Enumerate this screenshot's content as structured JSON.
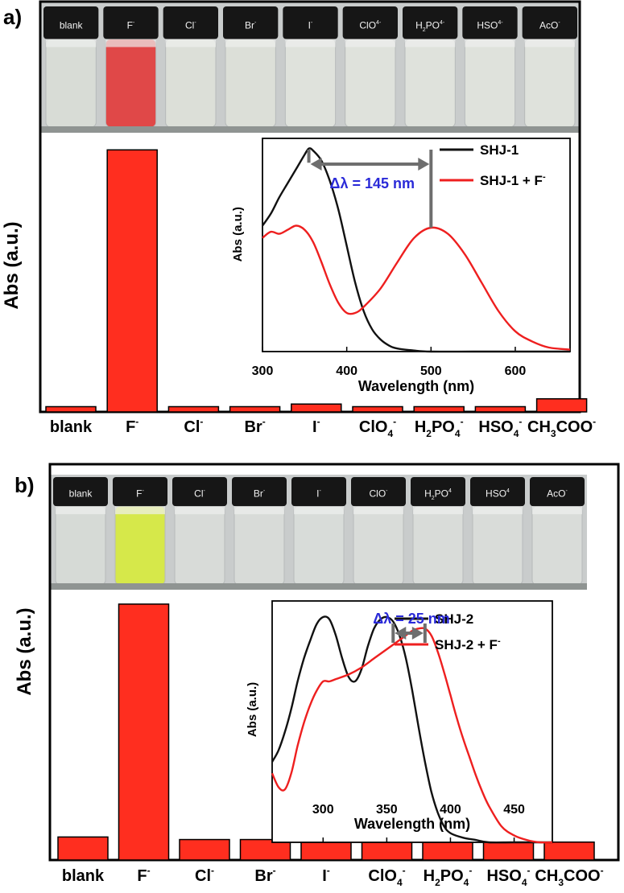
{
  "panels": [
    {
      "panel_label": "a)",
      "vial_labels": [
        {
          "base": "blank",
          "sup": ""
        },
        {
          "base": "F",
          "sup": "-"
        },
        {
          "base": "Cl",
          "sup": "-"
        },
        {
          "base": "Br",
          "sup": "-"
        },
        {
          "base": "I",
          "sup": "-"
        },
        {
          "base": "ClO",
          "sup": "4",
          "sup2": "-"
        },
        {
          "base": "H",
          "sub": "2",
          "mid": "PO",
          "sup": "4",
          "sup2": "-"
        },
        {
          "base": "HSO",
          "sup": "4",
          "sup2": "-"
        },
        {
          "base": "AcO",
          "sup": "-"
        }
      ],
      "vial_colors": [
        "#d8dcd6",
        "#e04848",
        "#dcdfd8",
        "#dcdfd8",
        "#dfe2dc",
        "#dfe2dc",
        "#dfe2dc",
        "#dfe2dc",
        "#dfe2dc"
      ],
      "chart_data": {
        "type": "bar",
        "ylabel": "Abs (a.u.)",
        "categories": [
          "blank",
          "F",
          "Cl",
          "Br",
          "I",
          "ClO4",
          "H2PO4",
          "HSO4",
          "CH3COO"
        ],
        "category_labels": [
          {
            "base": "blank"
          },
          {
            "base": "F",
            "sup": "-"
          },
          {
            "base": "Cl",
            "sup": "-"
          },
          {
            "base": "Br",
            "sup": "-"
          },
          {
            "base": "I",
            "sup": "-"
          },
          {
            "base": "ClO",
            "sub": "4",
            "sup": "-"
          },
          {
            "base": "H",
            "sub": "2",
            "mid": "PO",
            "sub2": "4",
            "sup": "-"
          },
          {
            "base": "HSO",
            "sub": "4",
            "sup": "-"
          },
          {
            "base": "CH",
            "sub": "3",
            "mid": "COO",
            "sup": "-"
          }
        ],
        "values": [
          0.02,
          1.0,
          0.02,
          0.02,
          0.03,
          0.02,
          0.02,
          0.02,
          0.05
        ],
        "ylim": [
          0,
          1.05
        ],
        "bar_color": "#ff2e1f",
        "inset": {
          "type": "line",
          "xlabel": "Wavelength (nm)",
          "ylabel": "Abs (a.u.)",
          "xlim": [
            300,
            665
          ],
          "ylim": [
            0,
            1.05
          ],
          "xticks": [
            300,
            400,
            500,
            600
          ],
          "annotation": "Δλ = 145 nm",
          "annotation_color": "#2a2ad8",
          "markers_nm": [
            355,
            500
          ],
          "series": [
            {
              "name": "SHJ-1",
              "color": "#111111",
              "x": [
                300,
                310,
                320,
                330,
                340,
                350,
                355,
                360,
                370,
                380,
                390,
                400,
                410,
                420,
                430,
                440,
                450,
                460,
                480,
                500,
                550,
                600,
                665
              ],
              "y": [
                0.62,
                0.68,
                0.76,
                0.83,
                0.9,
                0.97,
                1.0,
                0.99,
                0.94,
                0.84,
                0.7,
                0.52,
                0.34,
                0.2,
                0.11,
                0.06,
                0.03,
                0.015,
                0.005,
                0.0,
                0.0,
                0.0,
                0.0
              ]
            },
            {
              "name": "SHJ-1 + F",
              "color": "#ee1f1f",
              "x": [
                300,
                310,
                320,
                330,
                340,
                350,
                360,
                370,
                380,
                390,
                400,
                410,
                420,
                440,
                460,
                480,
                500,
                520,
                540,
                560,
                580,
                600,
                620,
                640,
                665
              ],
              "y": [
                0.56,
                0.59,
                0.58,
                0.6,
                0.62,
                0.6,
                0.54,
                0.44,
                0.33,
                0.24,
                0.19,
                0.19,
                0.22,
                0.31,
                0.44,
                0.56,
                0.61,
                0.58,
                0.48,
                0.34,
                0.2,
                0.1,
                0.05,
                0.02,
                0.01
              ]
            }
          ]
        }
      }
    },
    {
      "panel_label": "b)",
      "vial_labels": [
        {
          "base": "blank",
          "sup": ""
        },
        {
          "base": "F",
          "sup": "-"
        },
        {
          "base": "Cl",
          "sup": "-"
        },
        {
          "base": "Br",
          "sup": "-"
        },
        {
          "base": "I",
          "sup": "-"
        },
        {
          "base": "ClO",
          "sup": "-"
        },
        {
          "base": "H",
          "sub": "2",
          "mid": "PO",
          "sup": "4"
        },
        {
          "base": "HSO",
          "sup": "4"
        },
        {
          "base": "AcO",
          "sup": "-"
        }
      ],
      "vial_colors": [
        "#d6dad6",
        "#d6e84a",
        "#d8dbd8",
        "#d8dbd8",
        "#d8dcd9",
        "#d9dcd9",
        "#d9dcd9",
        "#d9dcd9",
        "#d9dcd9"
      ],
      "chart_data": {
        "type": "bar",
        "ylabel": "Abs (a.u.)",
        "categories": [
          "blank",
          "F",
          "Cl",
          "Br",
          "I",
          "ClO4",
          "H2PO4",
          "HSO4",
          "CH3COO"
        ],
        "category_labels": [
          {
            "base": "blank"
          },
          {
            "base": "F",
            "sup": "-"
          },
          {
            "base": "Cl",
            "sup": "-"
          },
          {
            "base": "Br",
            "sup": "-"
          },
          {
            "base": "I",
            "sup": "-"
          },
          {
            "base": "ClO",
            "sub": "4",
            "sup": "-"
          },
          {
            "base": "H",
            "sub": "2",
            "mid": "PO",
            "sub2": "4",
            "sup": "-"
          },
          {
            "base": "HSO",
            "sub": "4",
            "sup": "-"
          },
          {
            "base": "CH",
            "sub": "3",
            "mid": "COO",
            "sup": "-"
          }
        ],
        "values": [
          0.09,
          1.0,
          0.08,
          0.08,
          0.07,
          0.07,
          0.07,
          0.07,
          0.07
        ],
        "ylim": [
          0,
          1.05
        ],
        "bar_color": "#ff2e1f",
        "inset": {
          "type": "line",
          "xlabel": "Wavelength (nm)",
          "ylabel": "Abs (a.u.)",
          "xlim": [
            260,
            480
          ],
          "ylim": [
            0,
            1.05
          ],
          "xticks": [
            300,
            350,
            400,
            450
          ],
          "annotation": "Δλ = 25 nm",
          "annotation_color": "#2a2ad8",
          "markers_nm": [
            355,
            380
          ],
          "series": [
            {
              "name": "SHJ-2",
              "color": "#111111",
              "x": [
                260,
                265,
                270,
                275,
                280,
                285,
                290,
                295,
                300,
                305,
                310,
                315,
                320,
                325,
                330,
                335,
                340,
                345,
                350,
                355,
                360,
                365,
                370,
                375,
                380,
                385,
                390,
                395,
                400,
                410,
                420,
                430,
                450,
                480
              ],
              "y": [
                0.35,
                0.4,
                0.48,
                0.58,
                0.7,
                0.8,
                0.88,
                0.95,
                0.98,
                0.97,
                0.9,
                0.8,
                0.72,
                0.7,
                0.75,
                0.85,
                0.93,
                0.97,
                0.98,
                0.96,
                0.9,
                0.8,
                0.66,
                0.5,
                0.35,
                0.22,
                0.13,
                0.07,
                0.04,
                0.02,
                0.01,
                0.0,
                0.0,
                0.0
              ]
            },
            {
              "name": "SHJ-2 + F",
              "color": "#ee1f1f",
              "x": [
                260,
                265,
                270,
                275,
                280,
                285,
                290,
                295,
                300,
                305,
                310,
                320,
                330,
                340,
                350,
                360,
                370,
                375,
                380,
                385,
                390,
                395,
                400,
                405,
                410,
                415,
                420,
                425,
                430,
                440,
                450,
                460,
                470,
                480
              ],
              "y": [
                0.3,
                0.24,
                0.23,
                0.3,
                0.42,
                0.52,
                0.6,
                0.66,
                0.7,
                0.7,
                0.71,
                0.73,
                0.76,
                0.8,
                0.84,
                0.88,
                0.92,
                0.93,
                0.93,
                0.9,
                0.83,
                0.74,
                0.64,
                0.54,
                0.45,
                0.37,
                0.29,
                0.22,
                0.16,
                0.07,
                0.03,
                0.01,
                0.0,
                0.0
              ]
            }
          ]
        }
      }
    }
  ]
}
